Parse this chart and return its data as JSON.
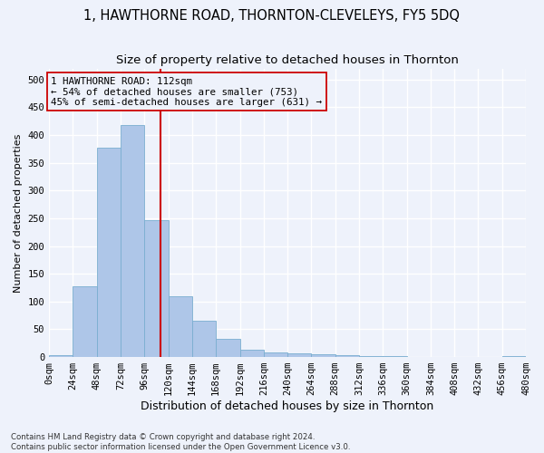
{
  "title": "1, HAWTHORNE ROAD, THORNTON-CLEVELEYS, FY5 5DQ",
  "subtitle": "Size of property relative to detached houses in Thornton",
  "xlabel": "Distribution of detached houses by size in Thornton",
  "ylabel": "Number of detached properties",
  "bin_edges": [
    0,
    24,
    48,
    72,
    96,
    120,
    144,
    168,
    192,
    216,
    240,
    264,
    288,
    312,
    336,
    360,
    384,
    408,
    432,
    456,
    480
  ],
  "bar_heights": [
    4,
    128,
    378,
    418,
    246,
    110,
    65,
    32,
    13,
    8,
    6,
    5,
    3,
    1,
    1,
    0,
    0,
    0,
    0,
    2
  ],
  "bar_color": "#aec6e8",
  "bar_edgecolor": "#7aaed0",
  "property_size": 112,
  "property_line_color": "#cc0000",
  "annotation_line1": "1 HAWTHORNE ROAD: 112sqm",
  "annotation_line2": "← 54% of detached houses are smaller (753)",
  "annotation_line3": "45% of semi-detached houses are larger (631) →",
  "annotation_box_edgecolor": "#cc0000",
  "ylim": [
    0,
    520
  ],
  "yticks": [
    0,
    50,
    100,
    150,
    200,
    250,
    300,
    350,
    400,
    450,
    500
  ],
  "footnote_line1": "Contains HM Land Registry data © Crown copyright and database right 2024.",
  "footnote_line2": "Contains public sector information licensed under the Open Government Licence v3.0.",
  "background_color": "#eef2fb",
  "grid_color": "#ffffff",
  "title_fontsize": 10.5,
  "subtitle_fontsize": 9.5,
  "xlabel_fontsize": 9,
  "ylabel_fontsize": 8,
  "tick_fontsize": 7.5,
  "annot_fontsize": 7.8,
  "footnote_fontsize": 6.2
}
